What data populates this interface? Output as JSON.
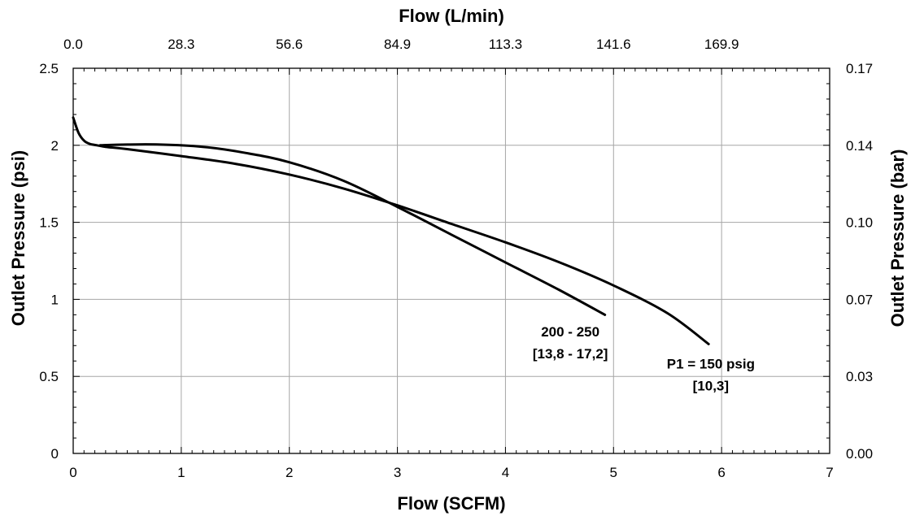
{
  "chart_data": {
    "type": "line",
    "x_title_bottom": "Flow (SCFM)",
    "x_title_top": "Flow (L/min)",
    "y_title_left": "Outlet Pressure (psi)",
    "y_title_right": "Outlet Pressure (bar)",
    "xlim": [
      0,
      7
    ],
    "ylim": [
      0,
      2.5
    ],
    "grid": true,
    "x_ticks": [
      {
        "value": 0,
        "label": "0"
      },
      {
        "value": 1,
        "label": "1"
      },
      {
        "value": 2,
        "label": "2"
      },
      {
        "value": 3,
        "label": "3"
      },
      {
        "value": 4,
        "label": "4"
      },
      {
        "value": 5,
        "label": "5"
      },
      {
        "value": 6,
        "label": "6"
      },
      {
        "value": 7,
        "label": "7"
      }
    ],
    "x_top_ticks": [
      {
        "value": 0,
        "label": "0.0"
      },
      {
        "value": 1,
        "label": "28.3"
      },
      {
        "value": 2,
        "label": "56.6"
      },
      {
        "value": 3,
        "label": "84.9"
      },
      {
        "value": 4,
        "label": "113.3"
      },
      {
        "value": 5,
        "label": "141.6"
      },
      {
        "value": 6,
        "label": "169.9"
      }
    ],
    "y_ticks": [
      {
        "value": 0,
        "label": "0"
      },
      {
        "value": 0.5,
        "label": "0.5"
      },
      {
        "value": 1,
        "label": "1"
      },
      {
        "value": 1.5,
        "label": "1.5"
      },
      {
        "value": 2,
        "label": "2"
      },
      {
        "value": 2.5,
        "label": "2.5"
      }
    ],
    "y_right_ticks": [
      {
        "value": 0,
        "label": "0.00"
      },
      {
        "value": 0.5,
        "label": "0.03"
      },
      {
        "value": 1,
        "label": "0.07"
      },
      {
        "value": 1.5,
        "label": "0.10"
      },
      {
        "value": 2,
        "label": "0.14"
      },
      {
        "value": 2.5,
        "label": "0.17"
      }
    ],
    "series": [
      {
        "name": "P1 = 150 psig [10,3]",
        "label_lines": [
          "P1 = 150 psig",
          "[10,3]"
        ],
        "label_at": [
          5.9,
          0.55
        ],
        "x": [
          0,
          0.05,
          0.1,
          0.15,
          0.22,
          0.3,
          0.5,
          1.0,
          1.5,
          2.0,
          2.5,
          3.0,
          3.5,
          4.0,
          4.5,
          5.0,
          5.5,
          5.88
        ],
        "y": [
          2.18,
          2.08,
          2.03,
          2.01,
          2.0,
          1.99,
          1.975,
          1.93,
          1.88,
          1.81,
          1.72,
          1.61,
          1.49,
          1.37,
          1.24,
          1.09,
          0.91,
          0.71
        ]
      },
      {
        "name": "200 - 250 [13,8 - 17,2]",
        "label_lines": [
          "200 - 250",
          "[13,8 - 17,2]"
        ],
        "label_at": [
          4.6,
          0.76
        ],
        "x": [
          0.25,
          0.5,
          0.8,
          1.2,
          1.6,
          2.0,
          2.5,
          3.0,
          3.5,
          4.0,
          4.5,
          4.92
        ],
        "y": [
          2.0,
          2.005,
          2.005,
          1.99,
          1.95,
          1.89,
          1.77,
          1.6,
          1.42,
          1.24,
          1.06,
          0.9
        ]
      }
    ]
  }
}
